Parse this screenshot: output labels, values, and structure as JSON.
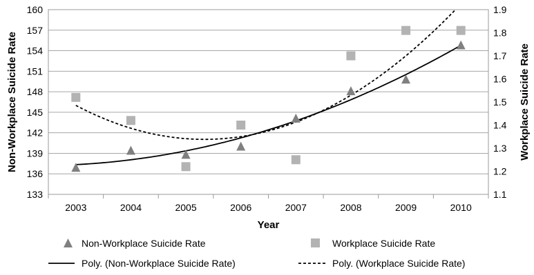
{
  "chart_data": {
    "type": "scatter",
    "xlabel": "Year",
    "ylabel_left": "Non-Workplace Suicide Rate",
    "ylabel_right": "Workplace Suicide Rate",
    "categories": [
      "2003",
      "2004",
      "2005",
      "2006",
      "2007",
      "2008",
      "2009",
      "2010"
    ],
    "y_left": {
      "lim": [
        133,
        160
      ],
      "ticks": [
        "133",
        "136",
        "139",
        "142",
        "145",
        "148",
        "151",
        "154",
        "157",
        "160"
      ]
    },
    "y_right": {
      "lim": [
        1.1,
        1.9
      ],
      "ticks": [
        "1.1",
        "1.2",
        "1.3",
        "1.4",
        "1.5",
        "1.6",
        "1.7",
        "1.8",
        "1.9"
      ]
    },
    "grid": "horizontal",
    "legend_position": "bottom",
    "series": [
      {
        "name": "Non-Workplace Suicide Rate",
        "axis": "left",
        "marker": "triangle",
        "color": "#808080",
        "values": [
          136.9,
          139.4,
          138.8,
          140.0,
          144.1,
          148.1,
          149.8,
          154.8
        ]
      },
      {
        "name": "Workplace Suicide Rate",
        "axis": "right",
        "marker": "square",
        "color": "#b3b3b3",
        "values": [
          1.52,
          1.42,
          1.22,
          1.4,
          1.25,
          1.7,
          1.81,
          1.81
        ]
      }
    ],
    "trendlines": [
      {
        "name": "Poly. (Non-Workplace Suicide Rate)",
        "series": 0,
        "style": "solid",
        "color": "#000000"
      },
      {
        "name": "Poly. (Workplace Suicide Rate)",
        "series": 1,
        "style": "dashed",
        "color": "#000000"
      }
    ]
  }
}
